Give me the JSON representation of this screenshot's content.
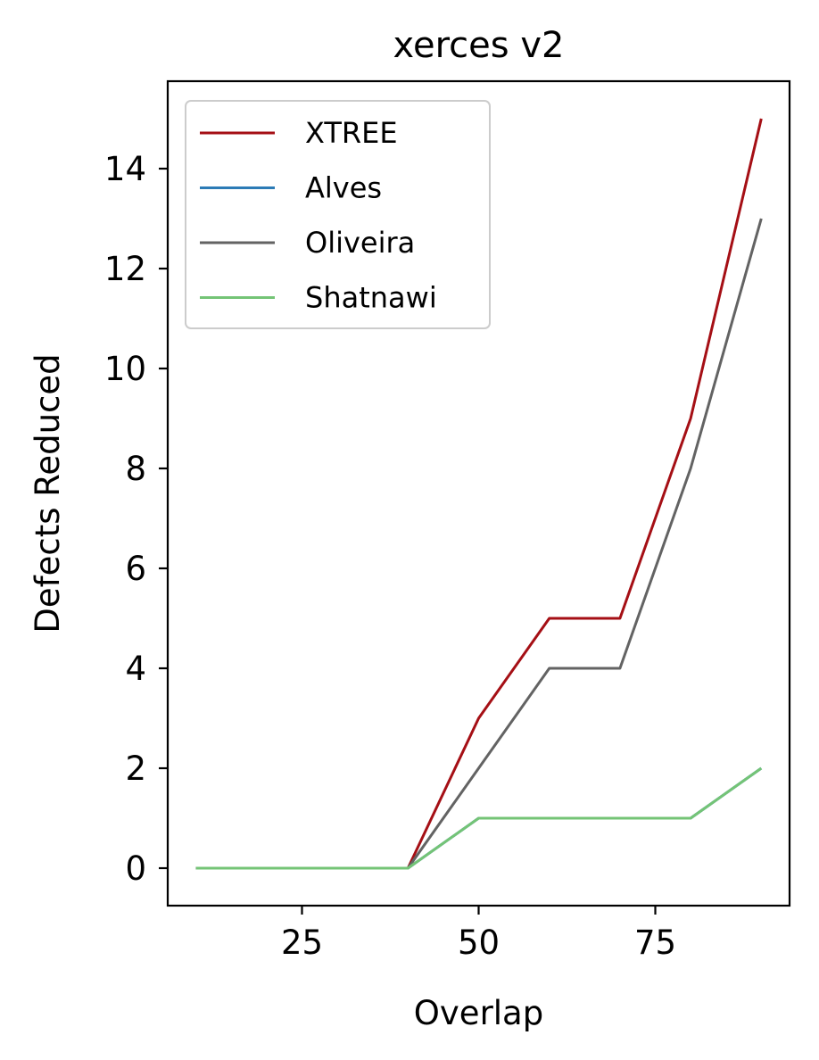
{
  "chart_data": {
    "type": "line",
    "title": "xerces v2",
    "xlabel": "Overlap",
    "ylabel": "Defects Reduced",
    "x": [
      10,
      20,
      30,
      40,
      50,
      60,
      70,
      80,
      90
    ],
    "series": [
      {
        "name": "XTREE",
        "color": "#a50f15",
        "values": [
          0,
          0,
          0,
          0,
          3,
          5,
          5,
          9,
          15
        ]
      },
      {
        "name": "Alves",
        "color": "#2c7bb6",
        "values": [
          0,
          0,
          0,
          0,
          1,
          1,
          1,
          1,
          2
        ]
      },
      {
        "name": "Oliveira",
        "color": "#636363",
        "values": [
          0,
          0,
          0,
          0,
          2,
          4,
          4,
          8,
          13
        ]
      },
      {
        "name": "Shatnawi",
        "color": "#74c476",
        "values": [
          0,
          0,
          0,
          0,
          1,
          1,
          1,
          1,
          2
        ]
      }
    ],
    "xlim": [
      6,
      94
    ],
    "ylim": [
      -0.75,
      15.75
    ],
    "xticks": [
      25,
      50,
      75
    ],
    "yticks": [
      0,
      2,
      4,
      6,
      8,
      10,
      12,
      14
    ],
    "grid": false,
    "legend": "top-left"
  }
}
